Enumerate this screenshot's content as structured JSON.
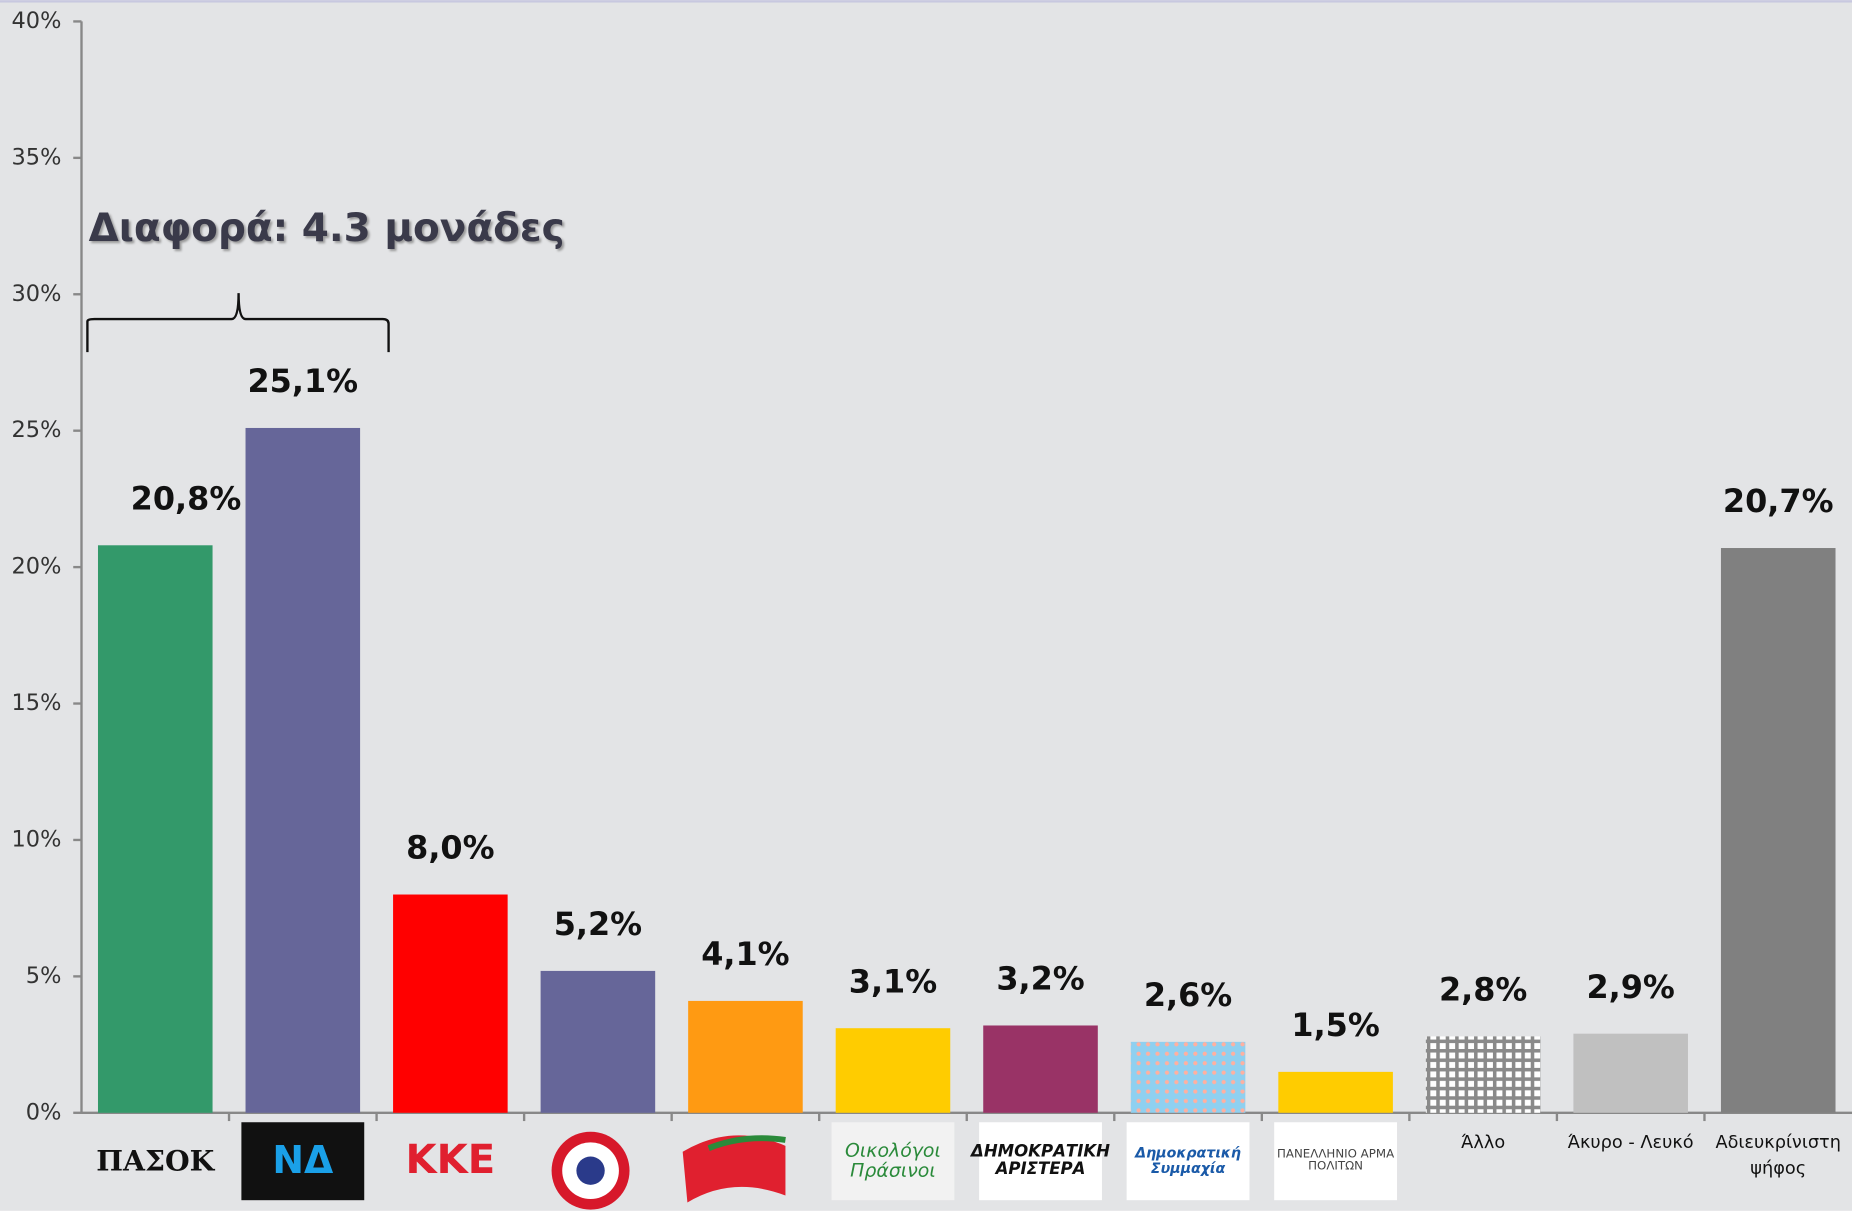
{
  "chart_data": {
    "type": "bar",
    "annotation": "Διαφορά: 4.3 μονάδες",
    "categories": [
      "ΠΑΣΟΚ",
      "ΝΔ",
      "ΚΚΕ",
      null,
      null,
      "Οικολόγοι Πράσινοι",
      "ΔΗΜΟΚΡΑΤΙΚΗ ΑΡΙΣΤΕΡΑ",
      "Δημοκρατική Συμμαχία",
      "ΠΑΝΕΛΛΗΝΙΟ ΑΡΜΑ ΠΟΛΙΤΩΝ",
      "Άλλο",
      "Άκυρο - Λευκό",
      "Αδιευκρίνιστη ψήφος"
    ],
    "values": [
      20.8,
      25.1,
      8.0,
      5.2,
      4.1,
      3.1,
      3.2,
      2.6,
      1.5,
      2.8,
      2.9,
      20.7
    ],
    "value_labels": [
      "20,8%",
      "25,1%",
      "8,0%",
      "5,2%",
      "4,1%",
      "3,1%",
      "3,2%",
      "2,6%",
      "1,5%",
      "2,8%",
      "2,9%",
      "20,7%"
    ],
    "colors": [
      "#33996a",
      "#666699",
      "#ff0000",
      "#666699",
      "#ff9a12",
      "#ffcc00",
      "#993366",
      "dots",
      "#ffcc00",
      "grid",
      "#c0c0c0",
      "#808080"
    ],
    "ylim": [
      0,
      40
    ],
    "yticks": [
      {
        "value": 0,
        "label": "0%"
      },
      {
        "value": 5,
        "label": "5%"
      },
      {
        "value": 10,
        "label": "10%"
      },
      {
        "value": 15,
        "label": "15%"
      },
      {
        "value": 20,
        "label": "20%"
      },
      {
        "value": 25,
        "label": "25%"
      },
      {
        "value": 30,
        "label": "30%"
      },
      {
        "value": 35,
        "label": "35%"
      },
      {
        "value": 40,
        "label": "40%"
      }
    ]
  }
}
